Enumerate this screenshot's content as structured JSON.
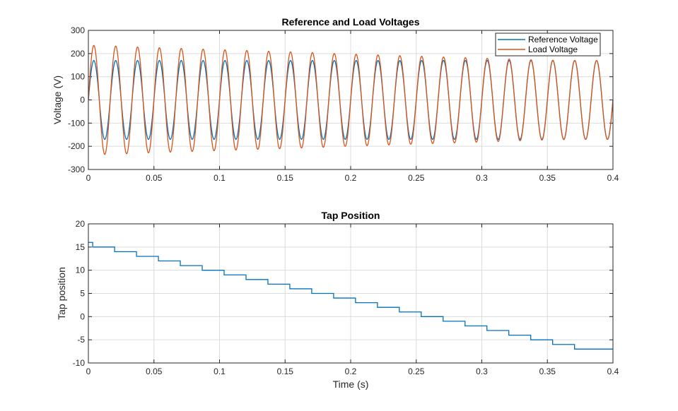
{
  "chart_data": [
    {
      "type": "line",
      "title": "Reference and Load Voltages",
      "xlabel": "",
      "ylabel": "Voltage (V)",
      "xlim": [
        0,
        0.4
      ],
      "ylim": [
        -300,
        300
      ],
      "xticks": [
        "0",
        "0.05",
        "0.1",
        "0.15",
        "0.2",
        "0.25",
        "0.3",
        "0.35",
        "0.4"
      ],
      "yticks": [
        "-300",
        "-200",
        "-100",
        "0",
        "100",
        "200",
        "300"
      ],
      "grid": true,
      "legend": "top-right",
      "frequency_hz": 60,
      "series": [
        {
          "name": "Reference Voltage",
          "color": "#0072BD",
          "amplitude": 170
        },
        {
          "name": "Load Voltage",
          "color": "#D95319",
          "cycle_peak_amplitudes": [
            235,
            232,
            228,
            225,
            222,
            219,
            216,
            213,
            210,
            207,
            204,
            200,
            197,
            194,
            191,
            188,
            185,
            182,
            179,
            176,
            173,
            171,
            170,
            170
          ]
        }
      ]
    },
    {
      "type": "line",
      "title": "Tap Position",
      "xlabel": "Time (s)",
      "ylabel": "Tap position",
      "xlim": [
        0,
        0.4
      ],
      "ylim": [
        -10,
        20
      ],
      "xticks": [
        "0",
        "0.05",
        "0.1",
        "0.15",
        "0.2",
        "0.25",
        "0.3",
        "0.35",
        "0.4"
      ],
      "yticks": [
        "-10",
        "-5",
        "0",
        "5",
        "10",
        "15",
        "20"
      ],
      "grid": true,
      "series": [
        {
          "color": "#0072BD",
          "step": true,
          "x": [
            0,
            0.0033,
            0.02,
            0.0367,
            0.0534,
            0.0701,
            0.0868,
            0.1035,
            0.1202,
            0.1369,
            0.1536,
            0.1703,
            0.187,
            0.2037,
            0.2204,
            0.2371,
            0.2538,
            0.2705,
            0.2872,
            0.3039,
            0.3206,
            0.3373,
            0.354,
            0.3707
          ],
          "y": [
            16,
            15,
            14,
            13,
            12,
            11,
            10,
            9,
            8,
            7,
            6,
            5,
            4,
            3,
            2,
            1,
            0,
            -1,
            -2,
            -3,
            -4,
            -5,
            -6,
            -7
          ]
        }
      ]
    }
  ]
}
